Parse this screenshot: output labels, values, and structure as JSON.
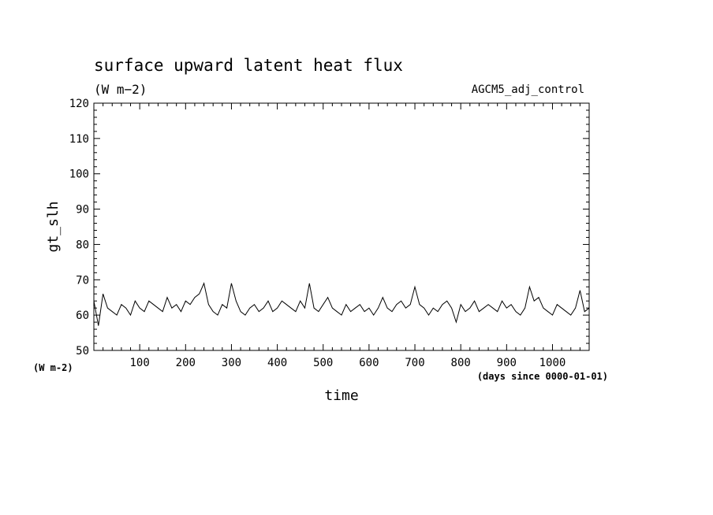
{
  "chart_data": {
    "type": "line",
    "title": "surface upward latent heat flux",
    "units": "(W m−2)",
    "run_label": "AGCM5_adj_control",
    "xlabel": "time",
    "x_unit_note": "(days since 0000-01-01)",
    "ylabel": "gt_slh",
    "y_unit_note": "(W m-2)",
    "xlim": [
      0,
      1080
    ],
    "ylim": [
      50,
      120
    ],
    "x_ticks": [
      100,
      200,
      300,
      400,
      500,
      600,
      700,
      800,
      900,
      1000
    ],
    "y_ticks": [
      50,
      60,
      70,
      80,
      90,
      100,
      110,
      120
    ],
    "grid": false,
    "series": [
      {
        "x": [
          0,
          10,
          20,
          30,
          40,
          50,
          60,
          70,
          80,
          90,
          100,
          110,
          120,
          130,
          140,
          150,
          160,
          170,
          180,
          190,
          200,
          210,
          220,
          230,
          240,
          250,
          260,
          270,
          280,
          290,
          300,
          310,
          320,
          330,
          340,
          350,
          360,
          370,
          380,
          390,
          400,
          410,
          420,
          430,
          440,
          450,
          460,
          470,
          480,
          490,
          500,
          510,
          520,
          530,
          540,
          550,
          560,
          570,
          580,
          590,
          600,
          610,
          620,
          630,
          640,
          650,
          660,
          670,
          680,
          690,
          700,
          710,
          720,
          730,
          740,
          750,
          760,
          770,
          780,
          790,
          800,
          810,
          820,
          830,
          840,
          850,
          860,
          870,
          880,
          890,
          900,
          910,
          920,
          930,
          940,
          950,
          960,
          970,
          980,
          990,
          1000,
          1010,
          1020,
          1030,
          1040,
          1050,
          1060,
          1070,
          1080
        ],
        "values": [
          64,
          57,
          66,
          62,
          61,
          60,
          63,
          62,
          60,
          64,
          62,
          61,
          64,
          63,
          62,
          61,
          65,
          62,
          63,
          61,
          64,
          63,
          65,
          66,
          69,
          63,
          61,
          60,
          63,
          62,
          69,
          64,
          61,
          60,
          62,
          63,
          61,
          62,
          64,
          61,
          62,
          64,
          63,
          62,
          61,
          64,
          62,
          69,
          62,
          61,
          63,
          65,
          62,
          61,
          60,
          63,
          61,
          62,
          63,
          61,
          62,
          60,
          62,
          65,
          62,
          61,
          63,
          64,
          62,
          63,
          68,
          63,
          62,
          60,
          62,
          61,
          63,
          64,
          62,
          58,
          63,
          61,
          62,
          64,
          61,
          62,
          63,
          62,
          61,
          64,
          62,
          63,
          61,
          60,
          62,
          68,
          64,
          65,
          62,
          61,
          60,
          63,
          62,
          61,
          60,
          62,
          67,
          61,
          62
        ]
      }
    ]
  }
}
